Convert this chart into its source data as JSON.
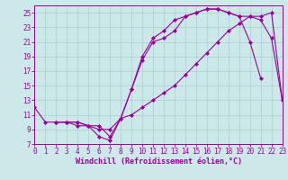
{
  "line1_x": [
    0,
    1,
    2,
    3,
    4,
    5,
    6,
    7,
    8,
    9,
    10,
    11,
    12,
    13,
    14,
    15,
    16,
    17,
    18,
    19,
    20,
    21
  ],
  "line1_y": [
    12.0,
    10.0,
    10.0,
    10.0,
    9.5,
    9.5,
    8.0,
    7.5,
    10.5,
    14.5,
    18.5,
    21.0,
    21.5,
    22.5,
    24.5,
    25.0,
    25.5,
    25.5,
    25.0,
    24.5,
    21.0,
    16.0
  ],
  "line2_x": [
    2,
    3,
    4,
    5,
    6,
    7,
    8,
    9,
    10,
    11,
    12,
    13,
    14,
    15,
    16,
    17,
    18,
    19,
    20,
    21,
    22,
    23
  ],
  "line2_y": [
    10.0,
    10.0,
    10.0,
    9.5,
    9.0,
    9.0,
    10.5,
    11.0,
    12.0,
    13.0,
    14.0,
    15.0,
    16.5,
    18.0,
    19.5,
    21.0,
    22.5,
    23.5,
    24.5,
    24.5,
    25.0,
    13.0
  ],
  "line3_x": [
    2,
    3,
    4,
    5,
    6,
    7,
    8,
    9,
    10,
    11,
    12,
    13,
    14,
    15,
    16,
    17,
    18,
    19,
    20,
    21,
    22,
    23
  ],
  "line3_y": [
    10.0,
    10.0,
    10.0,
    9.5,
    9.5,
    8.0,
    10.5,
    14.5,
    19.0,
    21.5,
    22.5,
    24.0,
    24.5,
    25.0,
    25.5,
    25.5,
    25.0,
    24.5,
    24.5,
    24.0,
    21.5,
    13.0
  ],
  "color": "#990099",
  "bg_color": "#cce8e8",
  "grid_color": "#aacfcf",
  "xlabel": "Windchill (Refroidissement éolien,°C)",
  "xlim": [
    0,
    23
  ],
  "ylim": [
    7,
    26
  ],
  "xticks": [
    0,
    1,
    2,
    3,
    4,
    5,
    6,
    7,
    8,
    9,
    10,
    11,
    12,
    13,
    14,
    15,
    16,
    17,
    18,
    19,
    20,
    21,
    22,
    23
  ],
  "yticks": [
    7,
    9,
    11,
    13,
    15,
    17,
    19,
    21,
    23,
    25
  ],
  "marker": "D",
  "markersize": 2.0,
  "linewidth": 0.8,
  "xlabel_fontsize": 6.0,
  "tick_fontsize": 5.5
}
